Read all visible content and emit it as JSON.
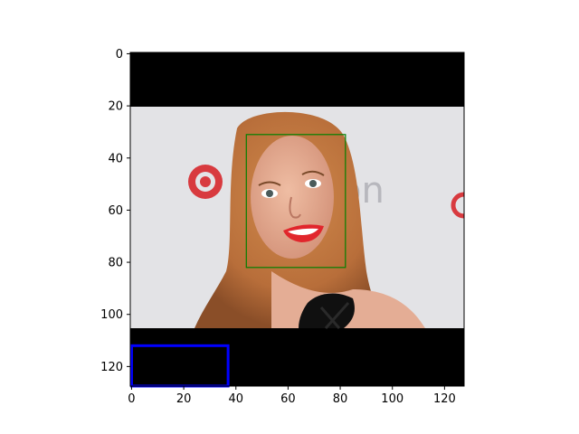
{
  "image_axes": {
    "x_ticks": [
      0,
      20,
      40,
      60,
      80,
      100,
      120
    ],
    "y_ticks": [
      0,
      20,
      40,
      60,
      80,
      100,
      120
    ],
    "x_range": [
      -0.5,
      127.5
    ],
    "y_range": [
      127.5,
      -0.5
    ]
  },
  "image": {
    "content_rows": [
      20,
      105
    ],
    "padding_color": "#000000",
    "background_color": "#e3e3e6",
    "logo_color": "#d83a3f"
  },
  "boxes": [
    {
      "name": "face-box",
      "x0": 44,
      "y0": 31,
      "x1": 82,
      "y1": 82,
      "color": "#008000"
    },
    {
      "name": "blue-box",
      "x0": 0,
      "y0": 112,
      "x1": 37,
      "y1": 128,
      "color": "#0000ff"
    }
  ],
  "colors": {
    "hair": "#b86e3a",
    "skin": "#e0a88c",
    "lips": "#e1262c",
    "clothing": "#101010"
  }
}
